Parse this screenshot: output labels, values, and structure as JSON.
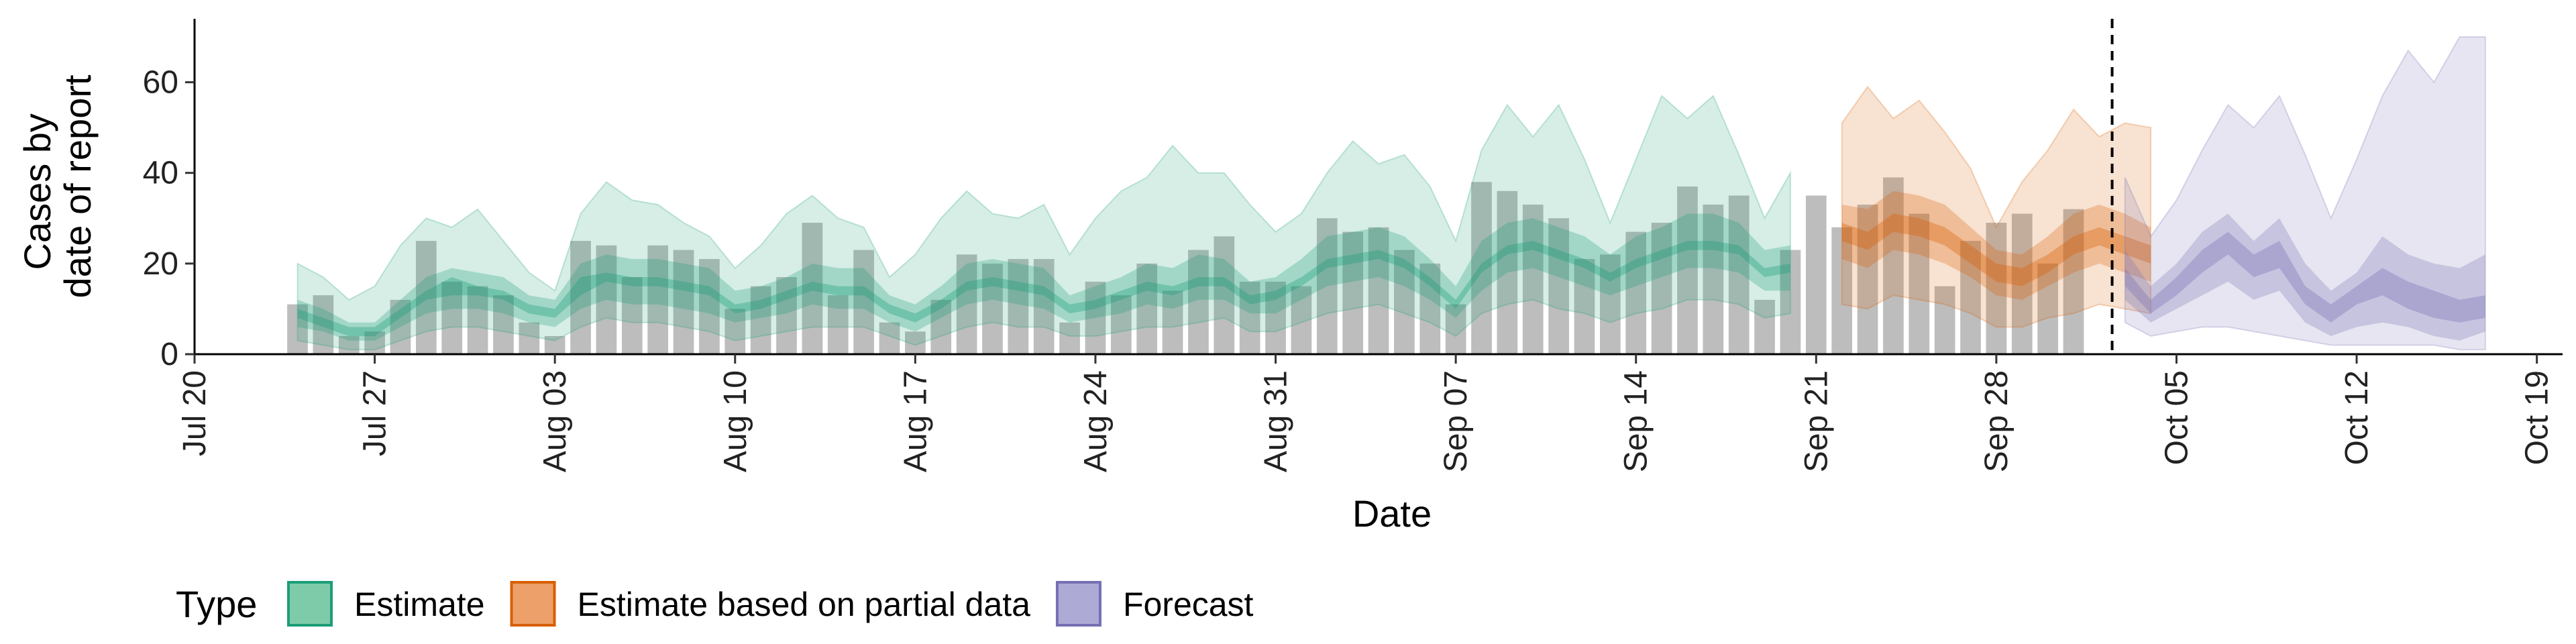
{
  "chart_data": {
    "type": "bar",
    "title": "",
    "xlabel": "Date",
    "ylabel_lines": [
      "Cases by",
      "date of report"
    ],
    "ylim": [
      0,
      74
    ],
    "y_ticks": [
      0,
      20,
      40,
      60
    ],
    "x_domain": [
      "2020-07-20",
      "2020-10-20"
    ],
    "x_ticks": [
      {
        "date": "2020-07-20",
        "label": "Jul 20"
      },
      {
        "date": "2020-07-27",
        "label": "Jul 27"
      },
      {
        "date": "2020-08-03",
        "label": "Aug 03"
      },
      {
        "date": "2020-08-10",
        "label": "Aug 10"
      },
      {
        "date": "2020-08-17",
        "label": "Aug 17"
      },
      {
        "date": "2020-08-24",
        "label": "Aug 24"
      },
      {
        "date": "2020-08-31",
        "label": "Aug 31"
      },
      {
        "date": "2020-09-07",
        "label": "Sep 07"
      },
      {
        "date": "2020-09-14",
        "label": "Sep 14"
      },
      {
        "date": "2020-09-21",
        "label": "Sep 21"
      },
      {
        "date": "2020-09-28",
        "label": "Sep 28"
      },
      {
        "date": "2020-10-05",
        "label": "Oct 05"
      },
      {
        "date": "2020-10-12",
        "label": "Oct 12"
      },
      {
        "date": "2020-10-19",
        "label": "Oct 19"
      }
    ],
    "forecast_start": "2020-10-02",
    "legend": {
      "title": "Type",
      "position": "bottom",
      "entries": [
        {
          "label": "Estimate",
          "fill": "#7ecbaa",
          "stroke": "#1b9e77"
        },
        {
          "label": "Estimate based on partial data",
          "fill": "#eda06a",
          "stroke": "#d95f02"
        },
        {
          "label": "Forecast",
          "fill": "#aeaad6",
          "stroke": "#7570b3"
        }
      ]
    },
    "bars": {
      "start": "2020-07-24",
      "color": "#bdbdbd",
      "values": [
        11,
        13,
        4,
        5,
        12,
        25,
        16,
        15,
        13,
        7,
        4,
        25,
        24,
        17,
        24,
        23,
        21,
        10,
        15,
        17,
        29,
        13,
        23,
        7,
        5,
        12,
        22,
        20,
        21,
        21,
        7,
        16,
        13,
        20,
        14,
        23,
        26,
        16,
        16,
        15,
        30,
        27,
        28,
        23,
        20,
        11,
        38,
        36,
        33,
        30,
        21,
        22,
        27,
        29,
        37,
        33,
        35,
        12,
        23,
        35,
        28,
        33,
        39,
        31,
        15,
        25,
        29,
        31,
        20,
        32
      ]
    },
    "series": [
      {
        "name": "Estimate",
        "color": "#1b9e77",
        "start": "2020-07-24",
        "median": [
          9,
          7,
          5,
          5,
          9,
          13,
          15,
          14,
          13,
          10,
          9,
          15,
          17,
          16,
          16,
          15,
          14,
          10,
          11,
          13,
          15,
          14,
          14,
          10,
          8,
          11,
          15,
          16,
          15,
          14,
          10,
          11,
          13,
          15,
          14,
          16,
          16,
          12,
          13,
          16,
          20,
          21,
          22,
          20,
          16,
          11,
          19,
          23,
          24,
          22,
          20,
          17,
          20,
          22,
          24,
          24,
          23,
          18,
          19
        ],
        "lo90": [
          3,
          2,
          1,
          1,
          3,
          5,
          6,
          6,
          5,
          4,
          3,
          6,
          8,
          7,
          7,
          6,
          5,
          3,
          4,
          5,
          6,
          6,
          6,
          4,
          2,
          4,
          6,
          7,
          6,
          6,
          4,
          4,
          5,
          6,
          6,
          7,
          8,
          5,
          5,
          7,
          9,
          10,
          11,
          9,
          7,
          4,
          9,
          11,
          12,
          10,
          9,
          7,
          9,
          10,
          12,
          12,
          11,
          8,
          9
        ],
        "hi90": [
          20,
          17,
          12,
          15,
          24,
          30,
          28,
          32,
          25,
          18,
          14,
          31,
          38,
          34,
          33,
          29,
          26,
          19,
          24,
          31,
          35,
          30,
          28,
          17,
          22,
          30,
          36,
          31,
          30,
          33,
          22,
          30,
          36,
          39,
          46,
          40,
          40,
          33,
          27,
          31,
          40,
          47,
          42,
          44,
          37,
          25,
          45,
          55,
          48,
          55,
          43,
          29,
          43,
          57,
          52,
          57,
          44,
          30,
          40
        ],
        "lo50": [
          6,
          5,
          3,
          3,
          6,
          9,
          10,
          10,
          9,
          7,
          6,
          10,
          12,
          11,
          11,
          10,
          9,
          7,
          8,
          9,
          11,
          10,
          10,
          7,
          5,
          8,
          11,
          12,
          11,
          10,
          7,
          8,
          9,
          11,
          10,
          12,
          12,
          9,
          9,
          12,
          15,
          16,
          17,
          15,
          12,
          8,
          14,
          18,
          19,
          17,
          15,
          13,
          15,
          17,
          19,
          19,
          18,
          14,
          14
        ],
        "hi50": [
          12,
          10,
          7,
          7,
          12,
          17,
          19,
          18,
          17,
          13,
          12,
          20,
          22,
          21,
          21,
          20,
          19,
          14,
          15,
          17,
          20,
          19,
          19,
          13,
          11,
          15,
          20,
          21,
          20,
          19,
          13,
          15,
          17,
          20,
          19,
          22,
          21,
          16,
          17,
          21,
          26,
          27,
          28,
          26,
          21,
          15,
          25,
          29,
          30,
          28,
          26,
          22,
          26,
          28,
          31,
          31,
          29,
          23,
          24
        ],
        "lo20": [
          8,
          6,
          4,
          4,
          8,
          12,
          13,
          13,
          12,
          9,
          8,
          13,
          16,
          15,
          15,
          14,
          13,
          9,
          10,
          12,
          14,
          13,
          13,
          9,
          7,
          10,
          14,
          15,
          14,
          13,
          9,
          10,
          12,
          14,
          13,
          15,
          15,
          11,
          12,
          15,
          19,
          20,
          21,
          19,
          15,
          10,
          18,
          22,
          23,
          21,
          19,
          16,
          19,
          21,
          23,
          23,
          22,
          17,
          18
        ],
        "hi20": [
          10,
          8,
          6,
          6,
          10,
          14,
          17,
          15,
          14,
          11,
          10,
          17,
          18,
          17,
          17,
          16,
          15,
          11,
          12,
          14,
          16,
          15,
          15,
          11,
          9,
          12,
          16,
          17,
          16,
          15,
          11,
          12,
          14,
          16,
          15,
          17,
          17,
          13,
          14,
          17,
          21,
          22,
          23,
          21,
          17,
          12,
          20,
          24,
          25,
          23,
          21,
          18,
          21,
          23,
          25,
          25,
          24,
          19,
          20
        ]
      },
      {
        "name": "Estimate based on partial data",
        "color": "#d95f02",
        "start": "2020-09-22",
        "median": [
          27,
          25,
          29,
          28,
          26,
          22,
          18,
          17,
          20,
          24,
          26,
          24,
          22
        ],
        "lo90": [
          11,
          10,
          13,
          12,
          11,
          9,
          6,
          6,
          8,
          9,
          11,
          10,
          9
        ],
        "hi90": [
          51,
          59,
          52,
          56,
          49,
          41,
          28,
          38,
          45,
          54,
          48,
          51,
          50
        ],
        "lo50": [
          21,
          19,
          23,
          22,
          20,
          17,
          13,
          12,
          15,
          18,
          20,
          18,
          16
        ],
        "hi50": [
          33,
          32,
          36,
          35,
          33,
          28,
          23,
          22,
          26,
          31,
          33,
          31,
          28
        ],
        "lo20": [
          25,
          23,
          27,
          26,
          24,
          20,
          16,
          15,
          18,
          22,
          24,
          22,
          20
        ],
        "hi20": [
          29,
          27,
          31,
          30,
          28,
          24,
          20,
          19,
          22,
          26,
          28,
          26,
          24
        ]
      },
      {
        "name": "Forecast",
        "color": "#7570b3",
        "start": "2020-10-03",
        "median": [
          17,
          10,
          15,
          20,
          24,
          19,
          22,
          13,
          9,
          13,
          16,
          13,
          11,
          9,
          10
        ],
        "lo90": [
          7,
          4,
          5,
          6,
          6,
          5,
          4,
          3,
          2,
          2,
          2,
          2,
          2,
          1,
          1
        ],
        "hi90": [
          39,
          26,
          34,
          45,
          55,
          50,
          57,
          44,
          30,
          43,
          57,
          67,
          60,
          70,
          70
        ],
        "lo50": [
          12,
          7,
          10,
          13,
          16,
          12,
          14,
          7,
          4,
          6,
          7,
          6,
          4,
          3,
          5
        ],
        "hi50": [
          23,
          15,
          20,
          27,
          31,
          25,
          30,
          20,
          14,
          18,
          26,
          22,
          20,
          19,
          22
        ],
        "lo20": [
          15,
          9,
          13,
          18,
          22,
          17,
          19,
          11,
          7,
          11,
          13,
          10,
          8,
          7,
          8
        ],
        "hi20": [
          19,
          12,
          17,
          23,
          27,
          22,
          25,
          15,
          11,
          15,
          19,
          16,
          14,
          12,
          13
        ]
      }
    ]
  }
}
